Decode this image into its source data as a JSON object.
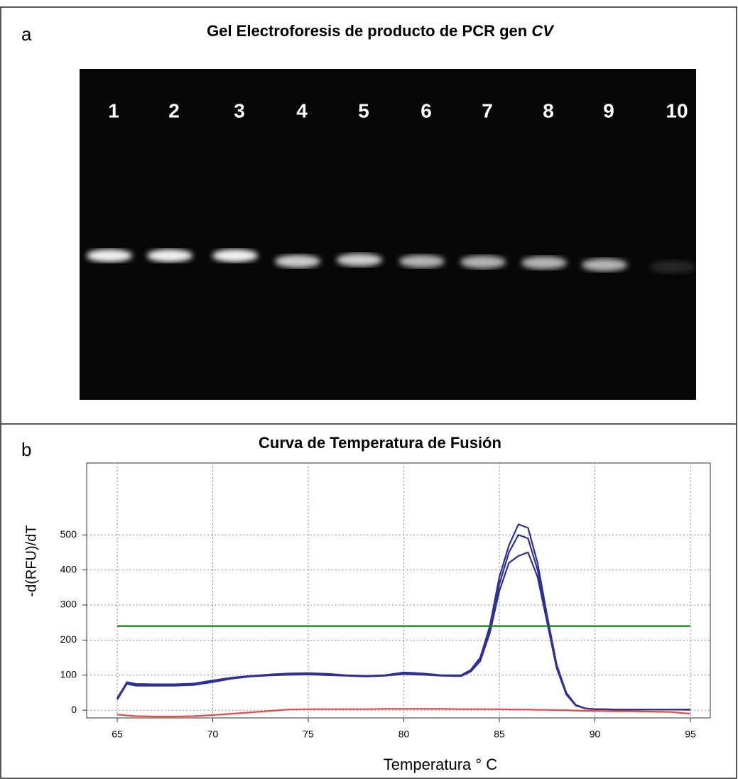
{
  "panel_a": {
    "letter": "a",
    "title": "Gel Electroforesis de producto de PCR gen",
    "title_italic": "CV",
    "lanes": [
      "1",
      "2",
      "3",
      "4",
      "5",
      "6",
      "7",
      "8",
      "9",
      "10"
    ]
  },
  "chart_data": {
    "type": "line",
    "letter": "b",
    "title": "Curva de Temperatura de Fusión",
    "x_label": "Temperatura ° C",
    "y_label": "-d(RFU)/dT",
    "x": [
      65,
      65.5,
      66,
      67,
      68,
      69,
      70,
      71,
      72,
      73,
      74,
      75,
      76,
      77,
      78,
      79,
      80,
      81,
      82,
      83,
      83.5,
      84,
      84.5,
      85,
      85.5,
      86,
      86.5,
      87,
      87.5,
      88,
      88.5,
      89,
      89.5,
      90,
      91,
      92,
      93,
      94,
      95
    ],
    "series": [
      {
        "color": "#2e3192",
        "values": [
          30,
          80,
          75,
          74,
          74,
          76,
          85,
          93,
          98,
          102,
          105,
          106,
          104,
          100,
          98,
          100,
          108,
          105,
          100,
          100,
          115,
          150,
          240,
          380,
          470,
          530,
          520,
          420,
          270,
          130,
          50,
          15,
          5,
          3,
          2,
          2,
          2,
          2,
          2
        ]
      },
      {
        "color": "#2e3192",
        "values": [
          35,
          78,
          72,
          72,
          72,
          74,
          82,
          91,
          97,
          100,
          103,
          104,
          102,
          99,
          97,
          99,
          105,
          103,
          99,
          98,
          112,
          145,
          230,
          360,
          450,
          500,
          490,
          400,
          260,
          125,
          48,
          14,
          5,
          3,
          2,
          2,
          2,
          2,
          2
        ]
      },
      {
        "color": "#2e3192",
        "values": [
          30,
          75,
          70,
          70,
          70,
          72,
          80,
          90,
          96,
          99,
          101,
          102,
          100,
          98,
          96,
          98,
          103,
          101,
          98,
          97,
          110,
          140,
          220,
          340,
          420,
          440,
          450,
          380,
          250,
          120,
          45,
          13,
          5,
          3,
          2,
          2,
          2,
          2,
          1
        ]
      },
      {
        "color": "#1a7a1a",
        "values": [
          240,
          240,
          240,
          240,
          240,
          240,
          240,
          240,
          240,
          240,
          240,
          240,
          240,
          240,
          240,
          240,
          240,
          240,
          240,
          240,
          240,
          240,
          240,
          240,
          240,
          240,
          240,
          240,
          240,
          240,
          240,
          240,
          240,
          240,
          240,
          240,
          240,
          240,
          240
        ]
      },
      {
        "color": "#e84a4a",
        "values": [
          -12,
          -15,
          -17,
          -18,
          -18,
          -17,
          -14,
          -10,
          -6,
          -2,
          2,
          3,
          3,
          3,
          3,
          4,
          4,
          4,
          4,
          3,
          3,
          3,
          3,
          3,
          2,
          2,
          2,
          1,
          1,
          0,
          0,
          -1,
          -2,
          -2,
          -3,
          -3,
          -4,
          -5,
          -10
        ]
      }
    ],
    "xlim": [
      63.4,
      96.04
    ],
    "ylim": [
      -22,
      705
    ],
    "xticks": [
      65,
      70,
      75,
      80,
      85,
      90,
      95
    ],
    "yticks": [
      0,
      100,
      200,
      300,
      400,
      500
    ],
    "grid": true
  }
}
